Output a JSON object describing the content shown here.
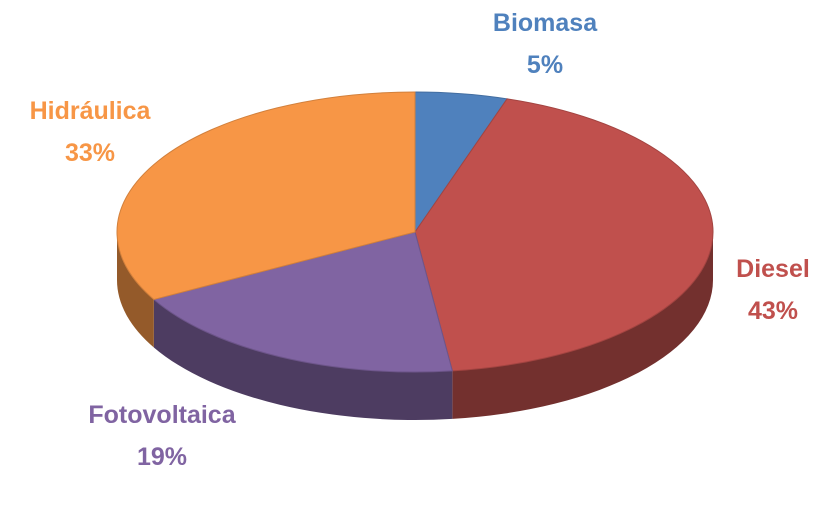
{
  "chart_data": {
    "type": "pie3d",
    "categories": [
      "Biomasa",
      "Diesel",
      "Fotovoltaica",
      "Hidráulica"
    ],
    "values": [
      5,
      43,
      19,
      33
    ],
    "value_labels": [
      "5%",
      "43%",
      "19%",
      "33%"
    ],
    "colors": [
      "#4f81bd",
      "#c0504d",
      "#8064a2",
      "#f79646"
    ]
  }
}
